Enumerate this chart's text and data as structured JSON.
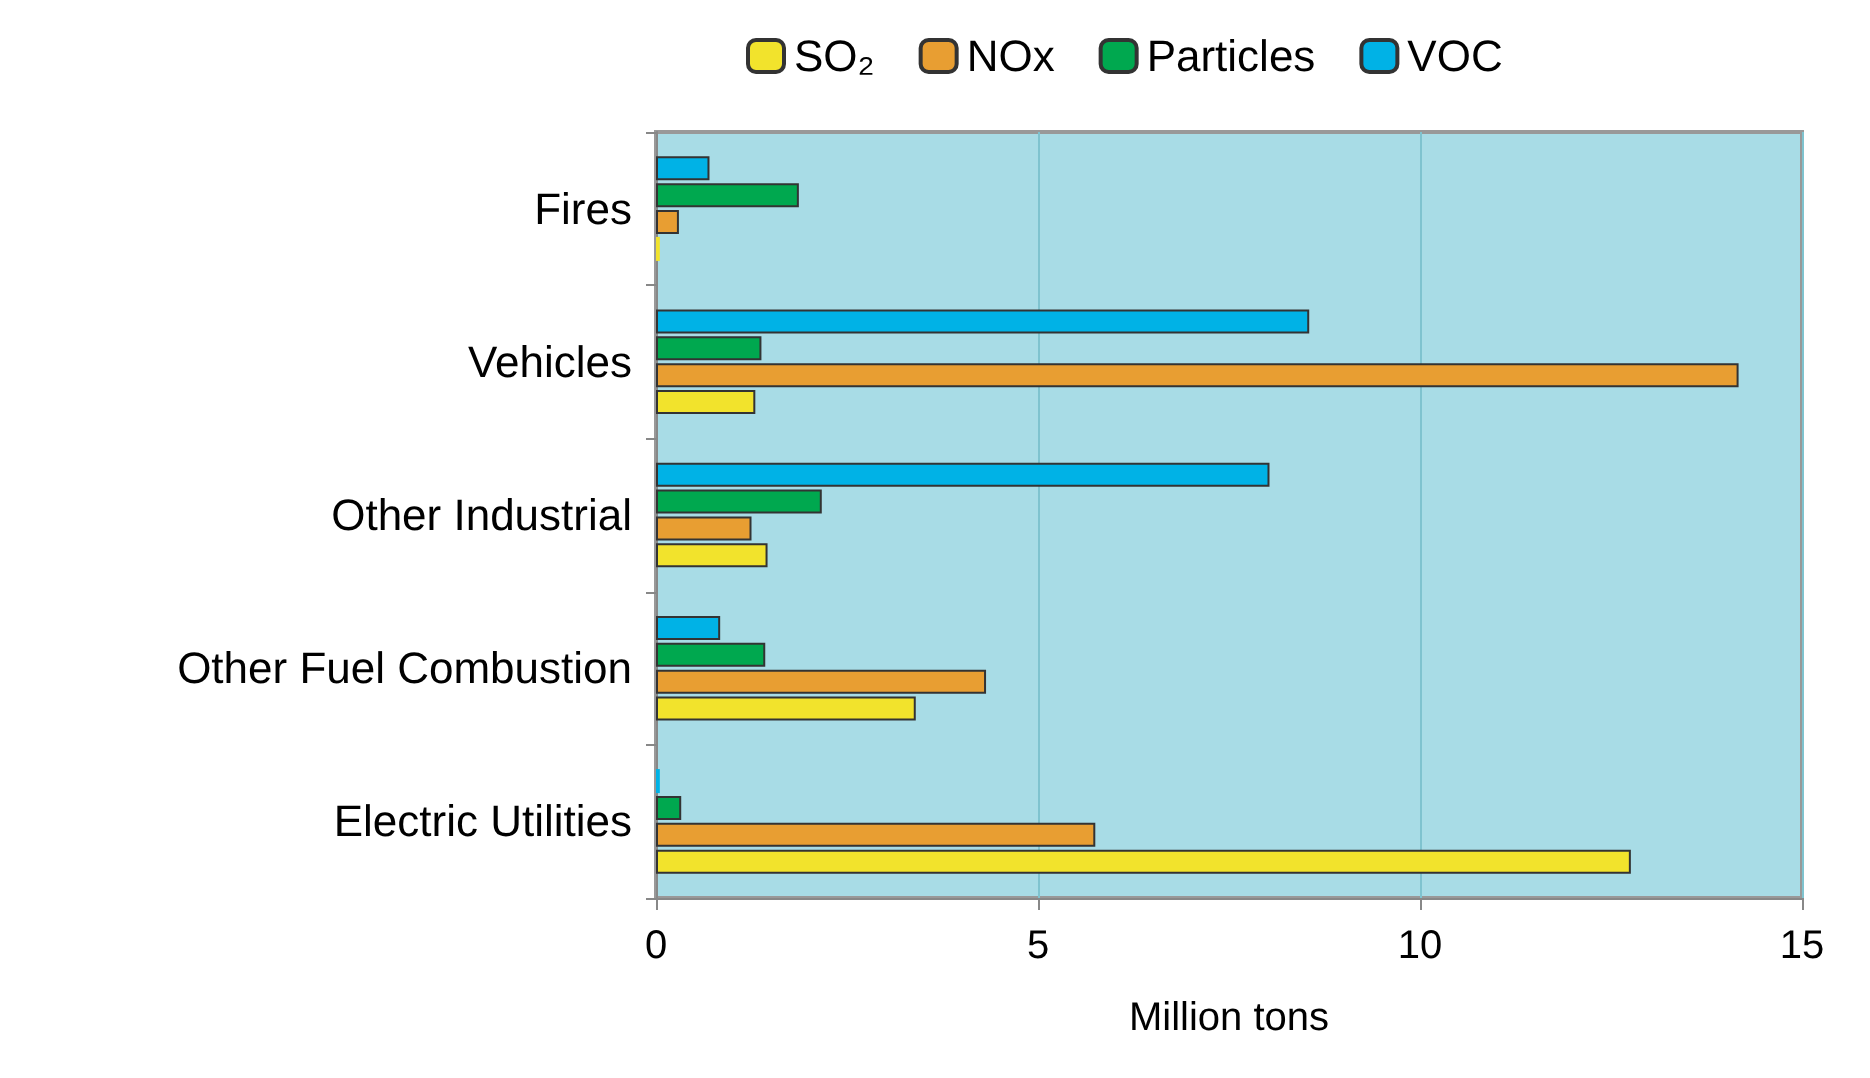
{
  "chart_data": {
    "type": "bar",
    "orientation": "horizontal",
    "xlabel": "Million tons",
    "categories": [
      "Fires",
      "Vehicles",
      "Other Industrial",
      "Other Fuel Combustion",
      "Electric Utilities"
    ],
    "series": [
      {
        "name": "SO₂",
        "color": "#f2e32c",
        "values": [
          0.05,
          1.3,
          1.46,
          3.4,
          12.76
        ]
      },
      {
        "name": "NOx",
        "color": "#e89e32",
        "values": [
          0.3,
          14.17,
          1.25,
          4.32,
          5.75
        ]
      },
      {
        "name": "Particles",
        "color": "#00a84f",
        "values": [
          1.87,
          1.38,
          2.17,
          1.43,
          0.33
        ]
      },
      {
        "name": "VOC",
        "color": "#00b2e6",
        "values": [
          0.7,
          8.55,
          8.03,
          0.84,
          0.05
        ]
      }
    ],
    "xlim": [
      0,
      15
    ],
    "xticks": [
      0,
      5,
      10,
      15
    ],
    "grid": "x",
    "legend": "top"
  }
}
